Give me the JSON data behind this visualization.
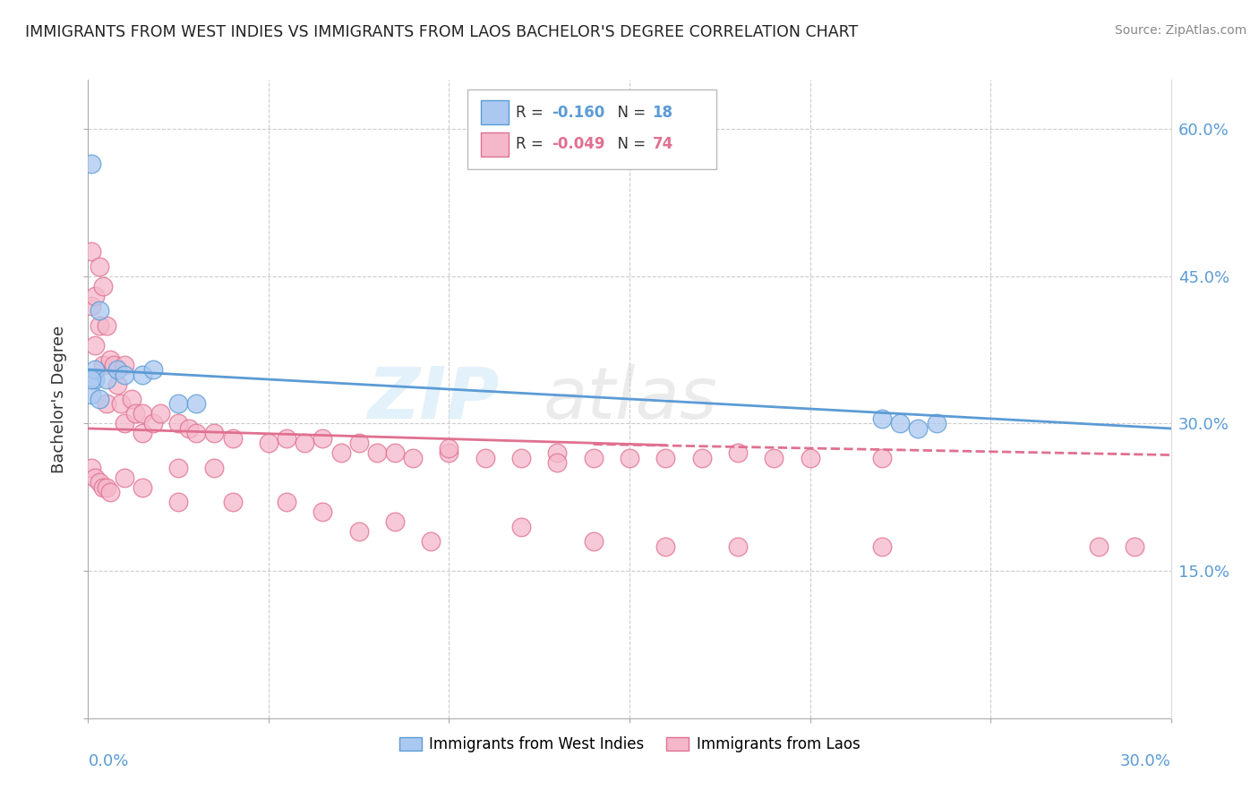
{
  "title": "IMMIGRANTS FROM WEST INDIES VS IMMIGRANTS FROM LAOS BACHELOR'S DEGREE CORRELATION CHART",
  "source": "Source: ZipAtlas.com",
  "ylabel": "Bachelor's Degree",
  "blue_color": "#aac8f0",
  "blue_line_color": "#5b9bd5",
  "pink_color": "#f5b8cb",
  "pink_line_color": "#e07090",
  "watermark_zip": "ZIP",
  "watermark_atlas": "atlas",
  "blue_r": "-0.160",
  "blue_n": "18",
  "pink_r": "-0.049",
  "pink_n": "74",
  "blue_scatter_x": [
    0.001,
    0.001,
    0.002,
    0.002,
    0.003,
    0.005,
    0.008,
    0.01,
    0.015,
    0.018,
    0.025,
    0.03,
    0.22,
    0.225,
    0.23,
    0.235,
    0.001,
    0.003
  ],
  "blue_scatter_y": [
    0.565,
    0.33,
    0.345,
    0.355,
    0.415,
    0.345,
    0.355,
    0.35,
    0.35,
    0.355,
    0.32,
    0.32,
    0.305,
    0.3,
    0.295,
    0.3,
    0.345,
    0.325
  ],
  "pink_scatter_x": [
    0.001,
    0.001,
    0.002,
    0.002,
    0.003,
    0.003,
    0.004,
    0.004,
    0.005,
    0.005,
    0.006,
    0.007,
    0.008,
    0.009,
    0.01,
    0.01,
    0.012,
    0.013,
    0.015,
    0.015,
    0.018,
    0.02,
    0.025,
    0.028,
    0.03,
    0.035,
    0.04,
    0.05,
    0.055,
    0.06,
    0.065,
    0.07,
    0.075,
    0.08,
    0.085,
    0.09,
    0.1,
    0.1,
    0.11,
    0.12,
    0.13,
    0.13,
    0.14,
    0.15,
    0.16,
    0.17,
    0.18,
    0.19,
    0.2,
    0.22,
    0.025,
    0.035,
    0.055,
    0.065,
    0.075,
    0.085,
    0.095,
    0.12,
    0.14,
    0.16,
    0.18,
    0.22,
    0.28,
    0.29,
    0.001,
    0.002,
    0.003,
    0.004,
    0.005,
    0.006,
    0.01,
    0.015,
    0.025,
    0.04
  ],
  "pink_scatter_y": [
    0.475,
    0.42,
    0.43,
    0.38,
    0.46,
    0.4,
    0.44,
    0.36,
    0.4,
    0.32,
    0.365,
    0.36,
    0.34,
    0.32,
    0.36,
    0.3,
    0.325,
    0.31,
    0.31,
    0.29,
    0.3,
    0.31,
    0.3,
    0.295,
    0.29,
    0.29,
    0.285,
    0.28,
    0.285,
    0.28,
    0.285,
    0.27,
    0.28,
    0.27,
    0.27,
    0.265,
    0.27,
    0.275,
    0.265,
    0.265,
    0.27,
    0.26,
    0.265,
    0.265,
    0.265,
    0.265,
    0.27,
    0.265,
    0.265,
    0.265,
    0.255,
    0.255,
    0.22,
    0.21,
    0.19,
    0.2,
    0.18,
    0.195,
    0.18,
    0.175,
    0.175,
    0.175,
    0.175,
    0.175,
    0.255,
    0.245,
    0.24,
    0.235,
    0.235,
    0.23,
    0.245,
    0.235,
    0.22,
    0.22
  ],
  "xlim": [
    0.0,
    0.3
  ],
  "ylim": [
    0.0,
    0.65
  ],
  "blue_trend": [
    0.355,
    0.295
  ],
  "pink_trend_solid": [
    0.0,
    0.16
  ],
  "pink_trend_dashed": [
    0.14,
    0.3
  ],
  "pink_trend_y_at_0": 0.295,
  "pink_trend_y_at_016": 0.278,
  "pink_trend_y_at_014": 0.279,
  "pink_trend_y_at_030": 0.268,
  "figsize": [
    14.06,
    8.92
  ],
  "dpi": 100
}
